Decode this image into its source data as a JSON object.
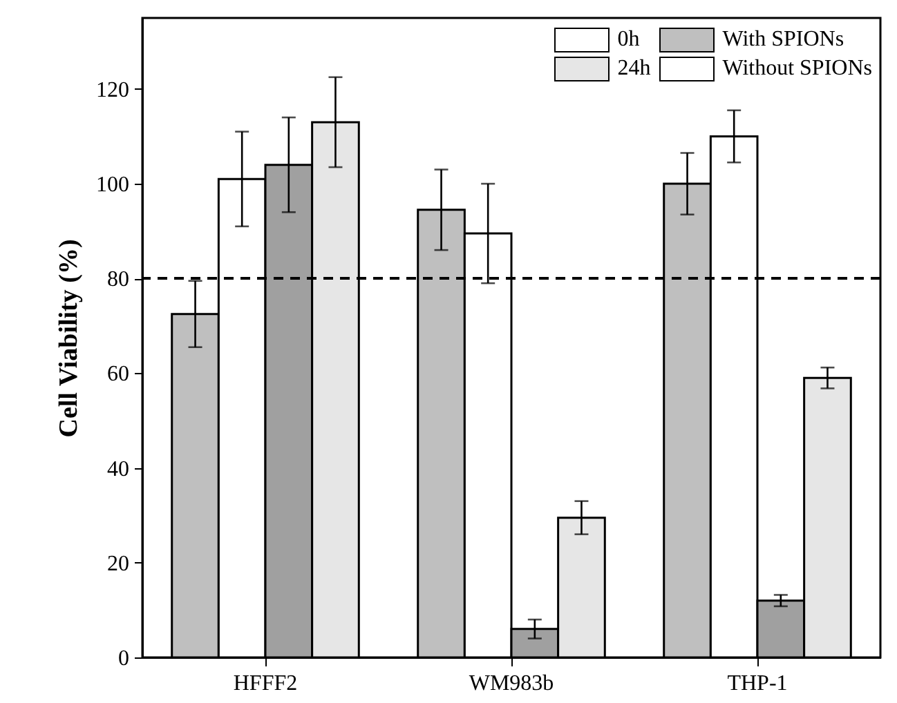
{
  "chart_data": {
    "type": "bar",
    "ylabel": "Cell Viability (%)",
    "categories": [
      "HFFF2",
      "WM983b",
      "THP-1"
    ],
    "series": [
      {
        "color": "#bfbfbf",
        "values": [
          72.5,
          94.5,
          100
        ],
        "errors": [
          7,
          8.5,
          6.5
        ]
      },
      {
        "color": "#ffffff",
        "values": [
          101,
          89.5,
          110
        ],
        "errors": [
          10,
          10.5,
          5.5
        ]
      },
      {
        "color": "#a0a0a0",
        "values": [
          104,
          6,
          12
        ],
        "errors": [
          10,
          2,
          1.2
        ]
      },
      {
        "color": "#e6e6e6",
        "values": [
          113,
          29.5,
          59
        ],
        "errors": [
          9.5,
          3.5,
          2.2
        ]
      }
    ],
    "ylim": [
      0,
      135
    ],
    "yticks": [
      0,
      20,
      40,
      60,
      80,
      100,
      120
    ],
    "ref_lines": [
      {
        "axis": "y",
        "value": 80,
        "line_style": "dashed"
      }
    ],
    "annotations": [
      "0h",
      "24h",
      "With SPIONs",
      "Without SPIONs"
    ],
    "grid": false
  }
}
